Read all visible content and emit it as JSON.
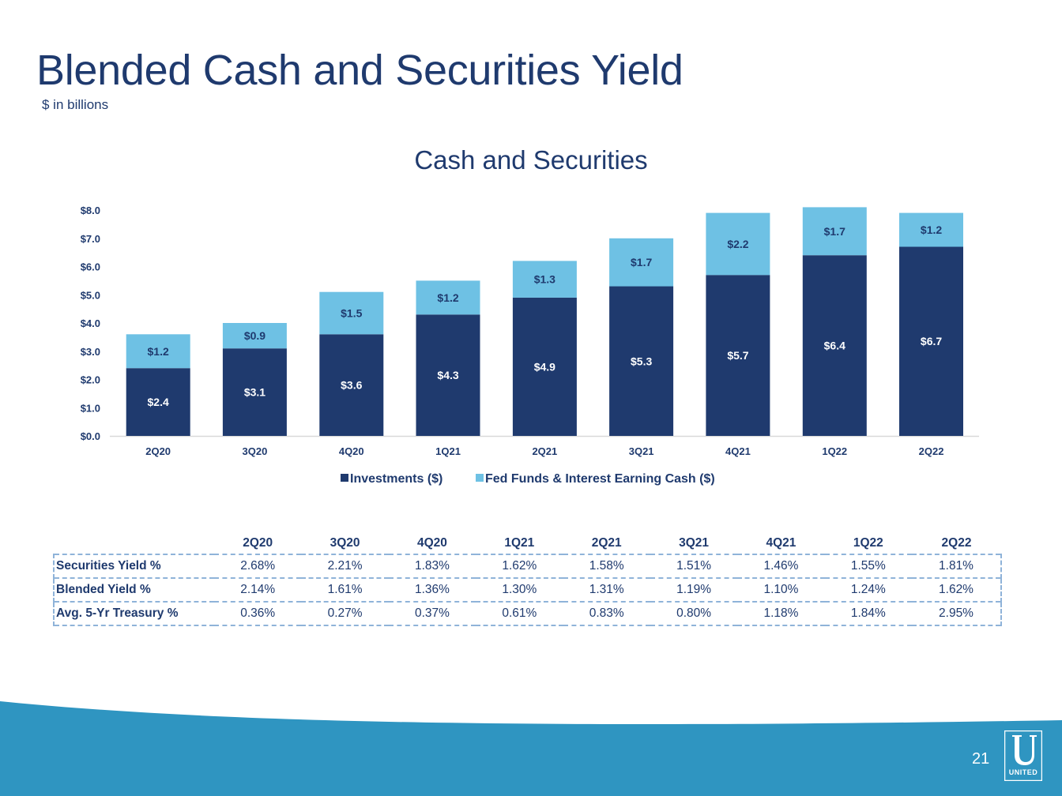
{
  "page": {
    "title": "Blended Cash and Securities Yield",
    "subtitle": "$ in billions",
    "page_number": "21",
    "logo_text": "UNITED",
    "colors": {
      "navy": "#1f3a6e",
      "light_blue": "#6ec1e4",
      "wave": "#2f95c1"
    }
  },
  "chart_data": {
    "type": "bar",
    "stacked": true,
    "title": "Cash and Securities",
    "categories": [
      "2Q20",
      "3Q20",
      "4Q20",
      "1Q21",
      "2Q21",
      "3Q21",
      "4Q21",
      "1Q22",
      "2Q22"
    ],
    "series": [
      {
        "name": "Investments ($)",
        "color": "#1f3a6e",
        "values": [
          2.4,
          3.1,
          3.6,
          4.3,
          4.9,
          5.3,
          5.7,
          6.4,
          6.7
        ],
        "labels": [
          "$2.4",
          "$3.1",
          "$3.6",
          "$4.3",
          "$4.9",
          "$5.3",
          "$5.7",
          "$6.4",
          "$6.7"
        ]
      },
      {
        "name": "Fed Funds & Interest Earning Cash ($)",
        "color": "#6ec1e4",
        "values": [
          1.2,
          0.9,
          1.5,
          1.2,
          1.3,
          1.7,
          2.2,
          1.7,
          1.2
        ],
        "labels": [
          "$1.2",
          "$0.9",
          "$1.5",
          "$1.2",
          "$1.3",
          "$1.7",
          "$2.2",
          "$1.7",
          "$1.2"
        ]
      }
    ],
    "ylim": [
      0,
      8
    ],
    "yticks": [
      "$0.0",
      "$1.0",
      "$2.0",
      "$3.0",
      "$4.0",
      "$5.0",
      "$6.0",
      "$7.0",
      "$8.0"
    ],
    "xlabel": "",
    "ylabel": "",
    "legend_position": "bottom",
    "grid": false
  },
  "table": {
    "headers": [
      "2Q20",
      "3Q20",
      "4Q20",
      "1Q21",
      "2Q21",
      "3Q21",
      "4Q21",
      "1Q22",
      "2Q22"
    ],
    "rows": [
      {
        "label": "Securities Yield %",
        "values": [
          "2.68%",
          "2.21%",
          "1.83%",
          "1.62%",
          "1.58%",
          "1.51%",
          "1.46%",
          "1.55%",
          "1.81%"
        ]
      },
      {
        "label": "Blended Yield %",
        "values": [
          "2.14%",
          "1.61%",
          "1.36%",
          "1.30%",
          "1.31%",
          "1.19%",
          "1.10%",
          "1.24%",
          "1.62%"
        ]
      },
      {
        "label": "Avg. 5-Yr Treasury %",
        "values": [
          "0.36%",
          "0.27%",
          "0.37%",
          "0.61%",
          "0.83%",
          "0.80%",
          "1.18%",
          "1.84%",
          "2.95%"
        ]
      }
    ]
  }
}
